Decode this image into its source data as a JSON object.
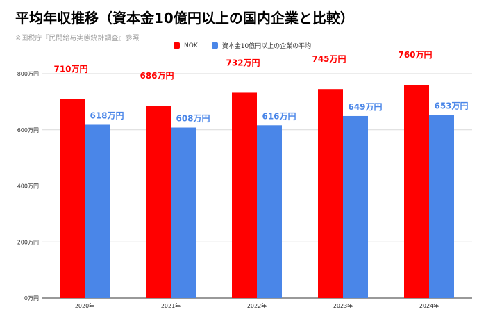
{
  "title": "平均年収推移（資本金10億円以上の国内企業と比較）",
  "subtitle": "※国税庁『民間給与実態統計調査』参照",
  "colors": {
    "nok": "#ff0000",
    "average": "#4a86e8",
    "grid": "#d9d9d9",
    "axis": "#333333"
  },
  "chart_data": {
    "type": "bar",
    "categories": [
      "2020年",
      "2021年",
      "2022年",
      "2023年",
      "2024年"
    ],
    "series": [
      {
        "name": "NOK",
        "values": [
          710,
          686,
          732,
          745,
          760
        ],
        "labels": [
          "710万円",
          "686万円",
          "732万円",
          "745万円",
          "760万円"
        ]
      },
      {
        "name": "資本金10億円以上の企業の平均",
        "values": [
          618,
          608,
          616,
          649,
          653
        ],
        "labels": [
          "618万円",
          "608万円",
          "616万円",
          "649万円",
          "653万円"
        ]
      }
    ],
    "ylim": [
      0,
      800
    ],
    "yticks": [
      0,
      200,
      400,
      600,
      800
    ],
    "ytick_labels": [
      "0万円",
      "200万円",
      "400万円",
      "600万円",
      "800万円"
    ],
    "grid": true,
    "legend_position": "top"
  }
}
